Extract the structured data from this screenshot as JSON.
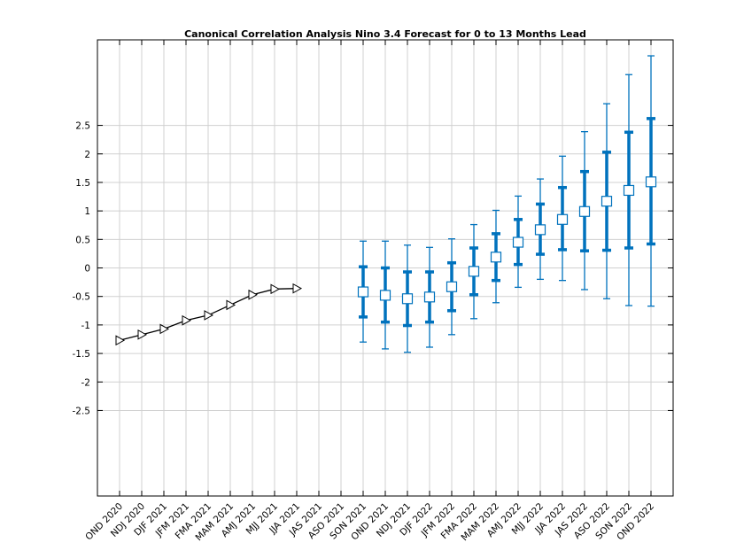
{
  "chart_data": {
    "type": "line",
    "title": "Canonical Correlation Analysis Nino 3.4 Forecast for 0 to 13 Months Lead",
    "xlabel": "",
    "ylabel": "",
    "ylim": [
      -4,
      4
    ],
    "yticks": [
      -2.5,
      -2,
      -1.5,
      -1,
      -0.5,
      0,
      0.5,
      1,
      1.5,
      2,
      2.5
    ],
    "ytick_labels": [
      "-2.5",
      "-2",
      "-1.5",
      "-1",
      "-0.5",
      "0",
      "0.5",
      "1",
      "1.5",
      "2",
      "2.5"
    ],
    "grid": true,
    "categories": [
      "OND 2020",
      "NDJ 2020",
      "DJF 2021",
      "JFM 2021",
      "FMA 2021",
      "MAM 2021",
      "AMJ 2021",
      "MJJ 2021",
      "JJA 2021",
      "JAS 2021",
      "ASO 2021",
      "SON 2021",
      "OND 2021",
      "NDJ 2021",
      "DJF 2022",
      "JFM 2022",
      "FMA 2022",
      "MAM 2022",
      "AMJ 2022",
      "MJJ 2022",
      "JJA 2022",
      "JAS 2022",
      "ASO 2022",
      "SON 2022",
      "OND 2022"
    ],
    "observed": {
      "color": "#000000",
      "marker": "triangle-right",
      "x": [
        "OND 2020",
        "NDJ 2020",
        "DJF 2021",
        "JFM 2021",
        "FMA 2021",
        "MAM 2021",
        "AMJ 2021",
        "MJJ 2021",
        "JJA 2021"
      ],
      "values": [
        -1.27,
        -1.17,
        -1.07,
        -0.92,
        -0.83,
        -0.65,
        -0.47,
        -0.37,
        -0.36
      ]
    },
    "forecast": {
      "color": "#0072bd",
      "marker": "square",
      "x": [
        "SON 2021",
        "OND 2021",
        "NDJ 2021",
        "DJF 2022",
        "JFM 2022",
        "FMA 2022",
        "MAM 2022",
        "AMJ 2022",
        "MJJ 2022",
        "JJA 2022",
        "JAS 2022",
        "ASO 2022",
        "SON 2022",
        "OND 2022"
      ],
      "values": [
        -0.42,
        -0.48,
        -0.54,
        -0.51,
        -0.33,
        -0.06,
        0.19,
        0.45,
        0.67,
        0.85,
        0.99,
        1.17,
        1.36,
        1.51
      ],
      "inner_low": [
        -0.86,
        -0.95,
        -1.01,
        -0.95,
        -0.75,
        -0.47,
        -0.22,
        0.06,
        0.24,
        0.32,
        0.3,
        0.31,
        0.35,
        0.42
      ],
      "inner_high": [
        0.02,
        0.0,
        -0.07,
        -0.07,
        0.09,
        0.35,
        0.6,
        0.85,
        1.12,
        1.41,
        1.69,
        2.03,
        2.38,
        2.62
      ],
      "outer_low": [
        -1.3,
        -1.42,
        -1.48,
        -1.39,
        -1.17,
        -0.89,
        -0.61,
        -0.34,
        -0.2,
        -0.22,
        -0.38,
        -0.54,
        -0.66,
        -0.67
      ],
      "outer_high": [
        0.47,
        0.47,
        0.4,
        0.36,
        0.51,
        0.76,
        1.01,
        1.26,
        1.56,
        1.96,
        2.39,
        2.88,
        3.39,
        3.72
      ]
    }
  }
}
